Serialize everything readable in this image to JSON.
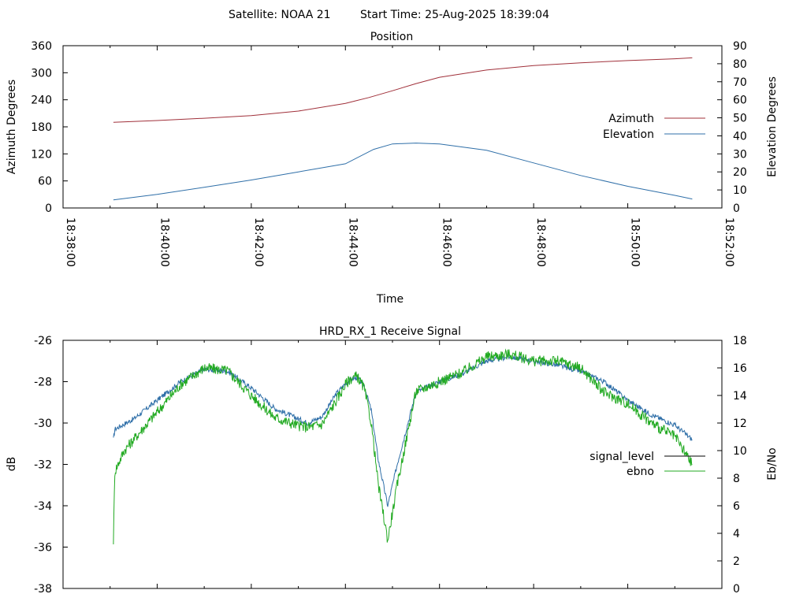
{
  "header": {
    "satellite_label": "Satellite: NOAA 21",
    "start_time_label": "Start Time: 25-Aug-2025 18:39:04"
  },
  "chart_data": [
    {
      "type": "line",
      "title": "Position",
      "xlabel": "Time",
      "ylabel": "Azimuth Degrees",
      "y2label": "Elevation Degrees",
      "x_ticks": [
        "18:38:00",
        "18:40:00",
        "18:42:00",
        "18:44:00",
        "18:46:00",
        "18:48:00",
        "18:50:00",
        "18:52:00"
      ],
      "xlim_minutes": [
        0,
        14
      ],
      "ylim": [
        0,
        360
      ],
      "y_ticks": [
        0,
        60,
        120,
        180,
        240,
        300,
        360
      ],
      "y2lim": [
        0,
        90
      ],
      "y2_ticks": [
        0,
        10,
        20,
        30,
        40,
        50,
        60,
        70,
        80,
        90
      ],
      "legend_position": "right",
      "series": [
        {
          "name": "Azimuth",
          "axis": "y",
          "color": "#a0303a",
          "x": [
            1.07,
            2,
            3,
            4,
            5,
            6,
            6.5,
            7,
            7.5,
            8,
            9,
            10,
            11,
            12,
            13,
            13.37
          ],
          "values": [
            190,
            194,
            199,
            205,
            215,
            232,
            245,
            260,
            276,
            290,
            306,
            316,
            322,
            327,
            331,
            333
          ]
        },
        {
          "name": "Elevation",
          "axis": "y2",
          "color": "#2f6fa8",
          "x": [
            1.07,
            2,
            3,
            4,
            5,
            6,
            6.6,
            7,
            7.5,
            8,
            9,
            10,
            11,
            12,
            13,
            13.37
          ],
          "values": [
            4.5,
            7.5,
            11.5,
            15.5,
            20,
            24.5,
            32.5,
            35.5,
            36,
            35.5,
            32,
            25,
            18,
            12,
            7,
            5
          ]
        }
      ]
    },
    {
      "type": "line",
      "title": "HRD_RX_1 Receive Signal",
      "ylabel": "dB",
      "y2label": "Eb/No",
      "xlim_minutes": [
        0,
        14
      ],
      "ylim": [
        -38,
        -26
      ],
      "y_ticks": [
        -38,
        -36,
        -34,
        -32,
        -30,
        -28,
        -26
      ],
      "y2lim": [
        0,
        18
      ],
      "y2_ticks": [
        0,
        2,
        4,
        6,
        8,
        10,
        12,
        14,
        16,
        18
      ],
      "legend_position": "right",
      "series": [
        {
          "name": "signal_level",
          "axis": "y",
          "color": "#2f6fa8",
          "x": [
            1.07,
            1.1,
            1.5,
            2.0,
            2.5,
            3.0,
            3.5,
            4.0,
            4.5,
            5.0,
            5.2,
            5.5,
            5.8,
            6.0,
            6.1,
            6.25,
            6.4,
            6.55,
            6.7,
            6.9,
            7.1,
            7.5,
            8.0,
            8.5,
            9.0,
            9.5,
            10.0,
            10.5,
            11.0,
            11.5,
            12.0,
            12.5,
            13.0,
            13.37
          ],
          "values": [
            -30.8,
            -30.3,
            -29.8,
            -28.9,
            -28.0,
            -27.4,
            -27.5,
            -28.3,
            -29.3,
            -29.8,
            -30.0,
            -29.7,
            -28.6,
            -28.1,
            -27.9,
            -27.8,
            -28.2,
            -29.4,
            -31.8,
            -34.0,
            -32.0,
            -28.5,
            -28.0,
            -27.6,
            -27.0,
            -26.8,
            -27.0,
            -27.2,
            -27.5,
            -28.0,
            -28.9,
            -29.6,
            -30.1,
            -30.8
          ]
        },
        {
          "name": "ebno",
          "axis": "y2",
          "color": "#22aa22",
          "x": [
            1.07,
            1.1,
            1.3,
            1.5,
            2.0,
            2.5,
            3.0,
            3.5,
            4.0,
            4.5,
            5.0,
            5.2,
            5.5,
            5.8,
            6.0,
            6.1,
            6.25,
            6.4,
            6.55,
            6.7,
            6.9,
            7.1,
            7.5,
            8.0,
            8.5,
            9.0,
            9.5,
            10.0,
            10.5,
            11.0,
            11.5,
            12.0,
            12.5,
            13.0,
            13.37
          ],
          "values": [
            3.5,
            8.5,
            10.0,
            10.8,
            12.8,
            14.8,
            16.0,
            15.8,
            14.0,
            12.4,
            11.8,
            11.7,
            11.9,
            13.6,
            14.8,
            15.2,
            15.4,
            14.5,
            12.0,
            7.5,
            3.5,
            7.5,
            14.3,
            15.0,
            15.7,
            16.8,
            17.0,
            16.5,
            16.5,
            16.0,
            14.2,
            13.4,
            12.0,
            11.0,
            9.0
          ]
        }
      ]
    }
  ]
}
